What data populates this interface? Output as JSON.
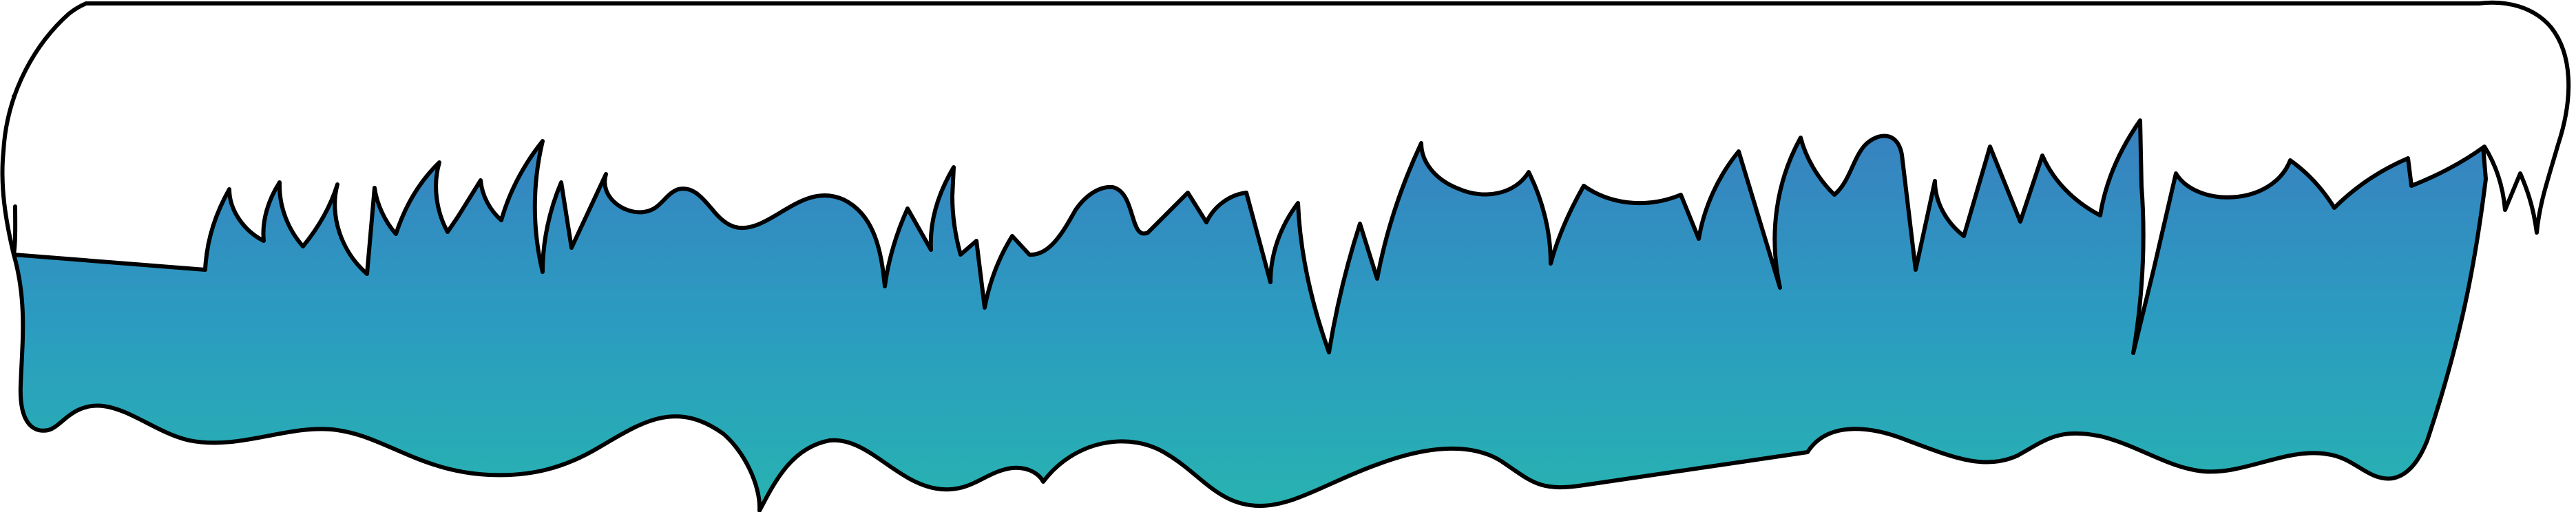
{
  "colors": {
    "background": "#ffffff",
    "outline": "#000000",
    "cap_fill": "#ffffff",
    "ice_gradient_top": "#3a7dc0",
    "ice_gradient_mid": "#2b9cc0",
    "ice_gradient_bottom": "#27b3b0"
  },
  "illustration": {
    "subject": "icicle-border",
    "shape_style": "outlined-cartoon"
  }
}
